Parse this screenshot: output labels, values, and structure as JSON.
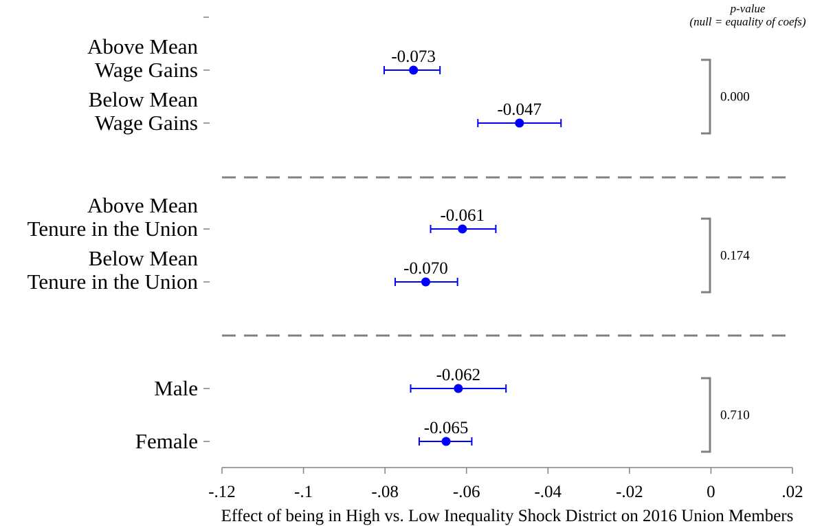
{
  "chart_data": {
    "type": "scatter",
    "subtype": "coefficient-plot-with-confidence-intervals",
    "xlabel": "Effect of being in High vs. Low Inequality Shock District on 2016 Union Members",
    "xlim": [
      -0.12,
      0.02
    ],
    "xticks": [
      {
        "value": -0.12,
        "label": "-.12"
      },
      {
        "value": -0.1,
        "label": "-.1"
      },
      {
        "value": -0.08,
        "label": "-.08"
      },
      {
        "value": -0.06,
        "label": "-.06"
      },
      {
        "value": -0.04,
        "label": "-.04"
      },
      {
        "value": -0.02,
        "label": "-.02"
      },
      {
        "value": 0.0,
        "label": "0"
      },
      {
        "value": 0.02,
        "label": ".02"
      }
    ],
    "pvalue_header": [
      "p-value",
      "(null = equality of coefs)"
    ],
    "series_color": "#0000ff",
    "bracket_color": "#808080",
    "groups": [
      {
        "pvalue": "0.000",
        "rows": [
          {
            "label": [
              "Above Mean",
              "Wage Gains"
            ],
            "estimate": -0.073,
            "ci": [
              -0.0802,
              -0.0665
            ],
            "value_label": "-0.073"
          },
          {
            "label": [
              "Below Mean",
              "Wage Gains"
            ],
            "estimate": -0.047,
            "ci": [
              -0.0572,
              -0.0368
            ],
            "value_label": "-0.047"
          }
        ]
      },
      {
        "pvalue": "0.174",
        "rows": [
          {
            "label": [
              "Above Mean",
              "Tenure in the Union"
            ],
            "estimate": -0.061,
            "ci": [
              -0.0688,
              -0.0528
            ],
            "value_label": "-0.061"
          },
          {
            "label": [
              "Below Mean",
              "Tenure in the Union"
            ],
            "estimate": -0.07,
            "ci": [
              -0.0775,
              -0.0622
            ],
            "value_label": "-0.070"
          }
        ]
      },
      {
        "pvalue": "0.710",
        "rows": [
          {
            "label": [
              "Male"
            ],
            "estimate": -0.062,
            "ci": [
              -0.0737,
              -0.0503
            ],
            "value_label": "-0.062"
          },
          {
            "label": [
              "Female"
            ],
            "estimate": -0.065,
            "ci": [
              -0.0716,
              -0.0587
            ],
            "value_label": "-0.065"
          }
        ]
      }
    ]
  }
}
